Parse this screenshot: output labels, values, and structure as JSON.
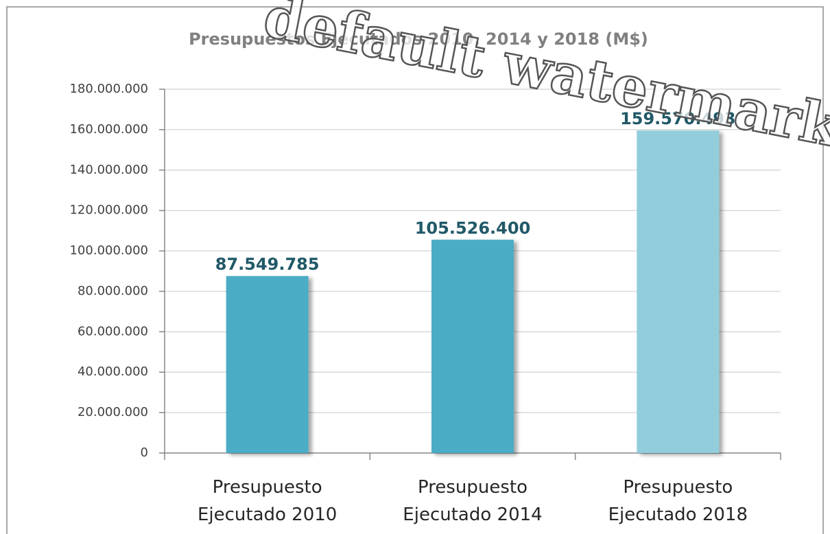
{
  "chart_data": {
    "type": "bar",
    "title": "Presupuestos Ejecutados 2010, 2014 y 2018 (M$)",
    "categories": [
      "Presupuesto Ejecutado 2010",
      "Presupuesto Ejecutado 2014",
      "Presupuesto Ejecutado 2018"
    ],
    "values": [
      87549785,
      105526400,
      159570493
    ],
    "value_labels": [
      "87.549.785",
      "105.526.400",
      "159.570.493"
    ],
    "colors": [
      "#4bacc6",
      "#4bacc6",
      "#92cddc"
    ],
    "ylim": [
      0,
      180000000
    ],
    "yticks": [
      0,
      {
        "value": 20000000,
        "label": "20.000.000"
      },
      {
        "value": 40000000,
        "label": "40.000.000"
      },
      {
        "value": 60000000,
        "label": "60.000.000"
      },
      {
        "value": 80000000,
        "label": "80.000.000"
      },
      {
        "value": 100000000,
        "label": "100.000.000"
      },
      {
        "value": 120000000,
        "label": "120.000.000"
      },
      {
        "value": 140000000,
        "label": "140.000.000"
      },
      {
        "value": 160000000,
        "label": "160.000.000"
      },
      {
        "value": 180000000,
        "label": "180.000.000"
      }
    ],
    "grid": true,
    "watermark": "default watermark"
  }
}
